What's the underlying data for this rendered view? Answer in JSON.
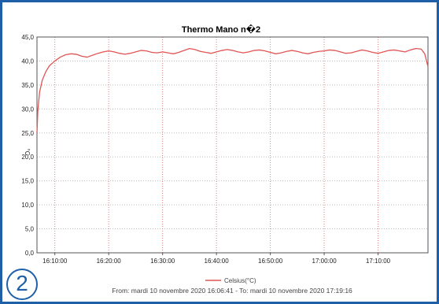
{
  "badge": {
    "label": "2"
  },
  "chart_data": {
    "type": "line",
    "title": "Thermo Mano n�2",
    "xlabel": "",
    "ylabel": "°C",
    "ylim": [
      0,
      45
    ],
    "yticks": [
      "0,0",
      "5,0",
      "10,0",
      "15,0",
      "20,0",
      "25,0",
      "30,0",
      "35,0",
      "40,0",
      "45,0"
    ],
    "xticks": [
      "16:10:00",
      "16:20:00",
      "16:30:00",
      "16:40:00",
      "16:50:00",
      "17:00:00",
      "17:10:00"
    ],
    "xrange": [
      "16:06:41",
      "17:19:16"
    ],
    "grid": true,
    "legend": "bottom",
    "series": [
      {
        "name": "Celsius(°C)",
        "color": "#e05555",
        "points": [
          [
            "16:06:41",
            25.0
          ],
          [
            "16:06:50",
            29.5
          ],
          [
            "16:07:10",
            33.5
          ],
          [
            "16:07:40",
            36.0
          ],
          [
            "16:08:20",
            37.8
          ],
          [
            "16:09:00",
            39.0
          ],
          [
            "16:10:00",
            40.0
          ],
          [
            "16:11:00",
            40.8
          ],
          [
            "16:12:00",
            41.3
          ],
          [
            "16:13:00",
            41.5
          ],
          [
            "16:14:00",
            41.4
          ],
          [
            "16:15:00",
            41.0
          ],
          [
            "16:16:00",
            40.8
          ],
          [
            "16:17:00",
            41.2
          ],
          [
            "16:18:00",
            41.6
          ],
          [
            "16:19:00",
            41.9
          ],
          [
            "16:20:00",
            42.1
          ],
          [
            "16:21:00",
            41.9
          ],
          [
            "16:22:00",
            41.6
          ],
          [
            "16:23:00",
            41.4
          ],
          [
            "16:24:00",
            41.6
          ],
          [
            "16:25:00",
            41.9
          ],
          [
            "16:26:00",
            42.2
          ],
          [
            "16:27:00",
            42.1
          ],
          [
            "16:28:00",
            41.8
          ],
          [
            "16:29:00",
            41.7
          ],
          [
            "16:30:00",
            41.9
          ],
          [
            "16:31:00",
            41.7
          ],
          [
            "16:32:00",
            41.5
          ],
          [
            "16:33:00",
            41.8
          ],
          [
            "16:34:00",
            42.2
          ],
          [
            "16:35:00",
            42.6
          ],
          [
            "16:36:00",
            42.4
          ],
          [
            "16:37:00",
            42.0
          ],
          [
            "16:38:00",
            41.8
          ],
          [
            "16:39:00",
            41.6
          ],
          [
            "16:40:00",
            41.9
          ],
          [
            "16:41:00",
            42.2
          ],
          [
            "16:42:00",
            42.4
          ],
          [
            "16:43:00",
            42.2
          ],
          [
            "16:44:00",
            41.9
          ],
          [
            "16:45:00",
            41.7
          ],
          [
            "16:46:00",
            41.9
          ],
          [
            "16:47:00",
            42.2
          ],
          [
            "16:48:00",
            42.3
          ],
          [
            "16:49:00",
            42.1
          ],
          [
            "16:50:00",
            41.8
          ],
          [
            "16:51:00",
            41.5
          ],
          [
            "16:52:00",
            41.7
          ],
          [
            "16:53:00",
            42.0
          ],
          [
            "16:54:00",
            42.2
          ],
          [
            "16:55:00",
            42.0
          ],
          [
            "16:56:00",
            41.7
          ],
          [
            "16:57:00",
            41.5
          ],
          [
            "16:58:00",
            41.8
          ],
          [
            "16:59:00",
            42.0
          ],
          [
            "17:00:00",
            42.1
          ],
          [
            "17:01:00",
            42.3
          ],
          [
            "17:02:00",
            42.2
          ],
          [
            "17:03:00",
            41.9
          ],
          [
            "17:04:00",
            41.6
          ],
          [
            "17:05:00",
            41.7
          ],
          [
            "17:06:00",
            42.0
          ],
          [
            "17:07:00",
            42.3
          ],
          [
            "17:08:00",
            42.1
          ],
          [
            "17:09:00",
            41.8
          ],
          [
            "17:10:00",
            41.6
          ],
          [
            "17:11:00",
            41.9
          ],
          [
            "17:12:00",
            42.2
          ],
          [
            "17:13:00",
            42.3
          ],
          [
            "17:14:00",
            42.1
          ],
          [
            "17:15:00",
            41.9
          ],
          [
            "17:16:00",
            42.3
          ],
          [
            "17:17:00",
            42.6
          ],
          [
            "17:18:00",
            42.5
          ],
          [
            "17:18:40",
            41.5
          ],
          [
            "17:19:16",
            38.8
          ]
        ]
      }
    ]
  },
  "footer": {
    "text": "From: mardi 10 novembre 2020 16:06:41  -  To: mardi 10 novembre 2020 17:19:16"
  }
}
